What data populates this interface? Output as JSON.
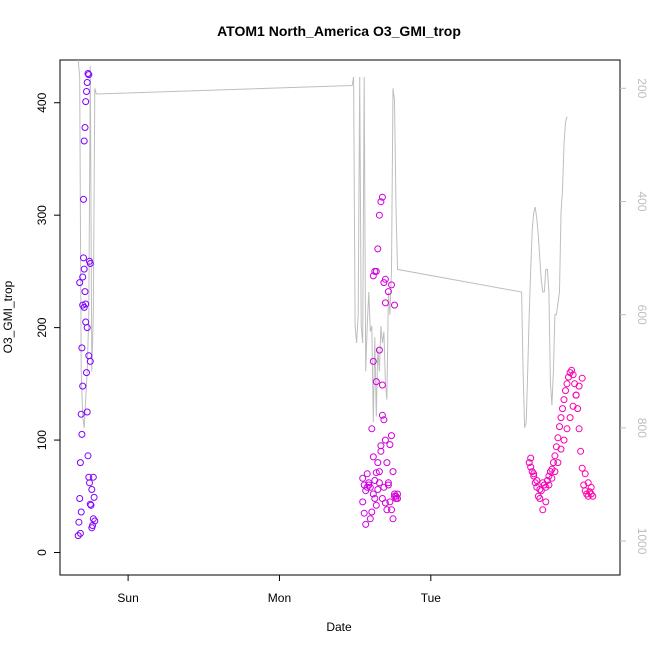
{
  "chart_data": {
    "type": "scatter",
    "title": "ATOM1 North_America O3_GMI_trop",
    "xlabel": "Date",
    "ylabel": "O3_GMI_trop",
    "x_ticks": [
      "Sun",
      "Mon",
      "Tue"
    ],
    "y_ticks": [
      0,
      100,
      200,
      300,
      400
    ],
    "y2_ticks": [
      200,
      400,
      600,
      800,
      1000
    ],
    "y2_reversed": true,
    "grid": false,
    "legend": "none",
    "colors": {
      "early": "#7f00ff",
      "mid": "#c800e6",
      "late": "#ff00aa",
      "pressure_line": "#bebebe",
      "axis": "#000000",
      "y2_axis": "#bebebe"
    },
    "series": [
      {
        "kind": "points",
        "x": [
          -0.33,
          -0.325,
          -0.32,
          -0.315,
          -0.31,
          -0.305,
          -0.3,
          -0.295,
          -0.29,
          -0.285,
          -0.28,
          -0.275,
          -0.27,
          -0.265,
          -0.26,
          -0.255,
          -0.25,
          -0.245,
          -0.24,
          -0.235,
          -0.23,
          -0.225,
          -0.22,
          -0.315,
          -0.31,
          -0.305,
          -0.3,
          -0.295,
          -0.29,
          -0.285,
          -0.28,
          -0.275,
          -0.27,
          -0.265,
          -0.26,
          -0.255,
          -0.25,
          -0.32,
          -0.3,
          -0.29,
          -0.28,
          -0.27,
          -0.26,
          -0.25,
          -0.24,
          -0.23
        ],
        "y": [
          15,
          27,
          48,
          80,
          123,
          182,
          245,
          262,
          252,
          232,
          221,
          160,
          125,
          86,
          67,
          62,
          43,
          42,
          22,
          24,
          30,
          49,
          28,
          17,
          36,
          105,
          148,
          314,
          366,
          378,
          401,
          410,
          418,
          426,
          425,
          259,
          257,
          240,
          220,
          218,
          205,
          200,
          175,
          170,
          56,
          67
        ]
      },
      {
        "kind": "points",
        "x": [
          1.55,
          1.56,
          1.57,
          1.58,
          1.59,
          1.6,
          1.61,
          1.62,
          1.63,
          1.64,
          1.65,
          1.66,
          1.67,
          1.68,
          1.69,
          1.7,
          1.71,
          1.72,
          1.73,
          1.74,
          1.75,
          1.76,
          1.77,
          1.78,
          1.55,
          1.56,
          1.57,
          1.58,
          1.59,
          1.6,
          1.61,
          1.62,
          1.63,
          1.64,
          1.65,
          1.66,
          1.67,
          1.68,
          1.69,
          1.7,
          1.71,
          1.72,
          1.73,
          1.74,
          1.75,
          1.76,
          1.77,
          1.78,
          1.62,
          1.63,
          1.64,
          1.65,
          1.66,
          1.67,
          1.68,
          1.69,
          1.7,
          1.62,
          1.64,
          1.66,
          1.68,
          1.7,
          1.72,
          1.74,
          1.76
        ],
        "y": [
          45,
          60,
          55,
          58,
          62,
          30,
          36,
          52,
          64,
          71,
          80,
          72,
          90,
          48,
          58,
          44,
          38,
          62,
          96,
          104,
          72,
          50,
          48,
          52,
          66,
          35,
          25,
          70,
          60,
          58,
          110,
          85,
          48,
          42,
          56,
          62,
          95,
          122,
          118,
          100,
          80,
          60,
          45,
          38,
          30,
          52,
          50,
          48,
          246,
          250,
          250,
          270,
          300,
          312,
          316,
          240,
          243,
          170,
          152,
          180,
          149,
          222,
          232,
          238,
          220
        ]
      },
      {
        "kind": "points",
        "x": [
          2.65,
          2.66,
          2.67,
          2.68,
          2.69,
          2.7,
          2.71,
          2.72,
          2.73,
          2.74,
          2.75,
          2.76,
          2.77,
          2.78,
          2.79,
          2.8,
          2.81,
          2.82,
          2.83,
          2.84,
          2.85,
          2.86,
          2.87,
          2.88,
          2.89,
          2.9,
          2.91,
          2.92,
          2.93,
          2.94,
          2.95,
          2.96,
          2.97,
          2.98,
          2.99,
          3.0,
          3.01,
          3.02,
          3.03,
          3.04,
          3.05,
          3.06,
          3.07,
          2.66,
          2.68,
          2.7,
          2.72,
          2.74,
          2.76,
          2.78,
          2.8,
          2.82,
          2.84,
          2.86,
          2.88,
          2.9,
          2.92,
          2.94,
          2.96,
          2.98,
          3.0,
          3.02,
          3.04,
          3.06
        ],
        "y": [
          80,
          76,
          72,
          68,
          62,
          58,
          50,
          48,
          55,
          62,
          60,
          58,
          64,
          68,
          72,
          74,
          80,
          86,
          94,
          102,
          112,
          120,
          128,
          136,
          144,
          150,
          156,
          160,
          162,
          158,
          150,
          140,
          128,
          110,
          90,
          75,
          60,
          55,
          52,
          50,
          54,
          52,
          50,
          84,
          70,
          64,
          56,
          38,
          45,
          60,
          66,
          72,
          80,
          92,
          100,
          110,
          120,
          130,
          140,
          148,
          155,
          70,
          62,
          58
        ]
      },
      {
        "kind": "line",
        "axis": "y2",
        "x": [
          -0.33,
          -0.32,
          -0.31,
          -0.3,
          -0.29,
          -0.28,
          -0.27,
          -0.26,
          -0.25,
          -0.24,
          -0.23,
          -0.22,
          -0.21,
          1.48,
          1.49,
          1.5,
          1.51,
          1.52,
          1.53,
          1.54,
          1.55,
          1.56,
          1.57,
          1.58,
          1.59,
          1.6,
          1.61,
          1.62,
          1.63,
          1.64,
          1.65,
          1.66,
          1.67,
          1.68,
          1.69,
          1.7,
          1.71,
          1.72,
          1.73,
          1.74,
          1.75,
          1.76,
          1.77,
          1.78,
          2.6,
          2.61,
          2.62,
          2.63,
          2.64,
          2.65,
          2.66,
          2.67,
          2.68,
          2.69,
          2.7,
          2.71,
          2.72,
          2.73,
          2.74,
          2.75,
          2.76,
          2.77,
          2.78,
          2.79,
          2.8,
          2.81,
          2.82,
          2.83,
          2.84,
          2.85,
          2.86,
          2.87,
          2.88,
          2.89,
          2.9
        ],
        "y": [
          150,
          180,
          700,
          780,
          800,
          750,
          700,
          600,
          160,
          700,
          600,
          200,
          210,
          195,
          180,
          620,
          650,
          600,
          180,
          620,
          650,
          180,
          700,
          620,
          560,
          630,
          620,
          790,
          640,
          780,
          660,
          700,
          620,
          650,
          630,
          720,
          750,
          560,
          600,
          520,
          200,
          220,
          410,
          520,
          560,
          700,
          800,
          790,
          700,
          600,
          520,
          450,
          420,
          410,
          430,
          460,
          500,
          540,
          560,
          560,
          520,
          520,
          560,
          720,
          760,
          700,
          600,
          600,
          580,
          560,
          420,
          380,
          300,
          260,
          250
        ]
      }
    ]
  }
}
